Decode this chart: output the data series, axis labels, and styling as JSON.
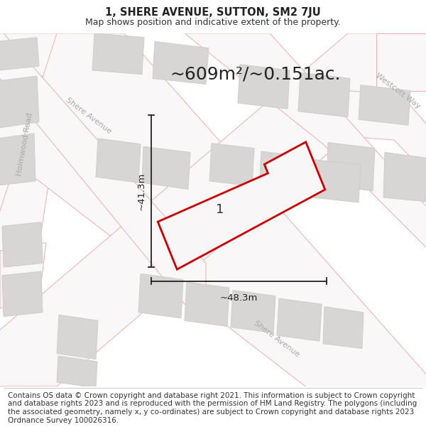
{
  "title_line1": "1, SHERE AVENUE, SUTTON, SM2 7JU",
  "title_line2": "Map shows position and indicative extent of the property.",
  "area_text": "~609m²/~0.151ac.",
  "map_bg": "#f2eeee",
  "road_color": "#f9f7f7",
  "road_stroke": "#e8b0b0",
  "block_color": "#d8d5d5",
  "block_stroke": "#d0cccc",
  "plot_color": "#f9f7f7",
  "plot_stroke": "#cc0000",
  "plot_label": "1",
  "dim_h_label": "~48.3m",
  "dim_v_label": "~41.3m",
  "footer_text": "Contains OS data © Crown copyright and database right 2021. This information is subject to Crown copyright and database rights 2023 and is reproduced with the permission of HM Land Registry. The polygons (including the associated geometry, namely x, y co-ordinates) are subject to Crown copyright and database rights 2023 Ordnance Survey 100026316.",
  "title_fontsize": 10.5,
  "subtitle_fontsize": 9,
  "area_fontsize": 18,
  "footer_fontsize": 7.5,
  "label_fontsize": 13,
  "dim_fontsize": 9.5,
  "road_label_fontsize": 8,
  "holmwood_label": "Holmwood Road",
  "shere_upper_label": "Shere Avenue",
  "shere_lower_label": "Shere Avenue",
  "westcott_label": "Westcott Way"
}
